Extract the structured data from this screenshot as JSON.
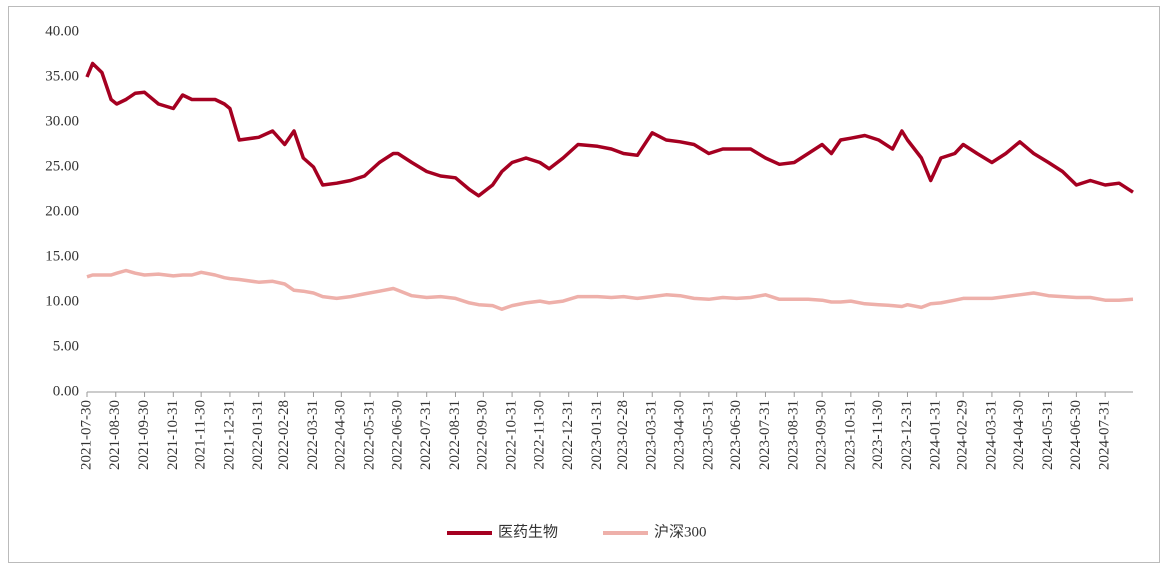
{
  "chart_data": {
    "type": "line",
    "x": [
      "2021-07-30",
      "2021-08-05",
      "2021-08-15",
      "2021-08-25",
      "2021-08-31",
      "2021-09-10",
      "2021-09-20",
      "2021-09-30",
      "2021-10-15",
      "2021-10-31",
      "2021-11-10",
      "2021-11-20",
      "2021-11-30",
      "2021-12-15",
      "2021-12-25",
      "2021-12-31",
      "2022-01-10",
      "2022-01-31",
      "2022-02-15",
      "2022-02-28",
      "2022-03-10",
      "2022-03-20",
      "2022-03-31",
      "2022-04-10",
      "2022-04-25",
      "2022-05-10",
      "2022-05-25",
      "2022-06-10",
      "2022-06-25",
      "2022-06-30",
      "2022-07-15",
      "2022-07-31",
      "2022-08-15",
      "2022-08-31",
      "2022-09-15",
      "2022-09-25",
      "2022-10-10",
      "2022-10-20",
      "2022-10-31",
      "2022-11-15",
      "2022-11-30",
      "2022-12-10",
      "2022-12-25",
      "2023-01-10",
      "2023-01-31",
      "2023-02-15",
      "2023-02-28",
      "2023-03-15",
      "2023-03-31",
      "2023-04-15",
      "2023-04-30",
      "2023-05-15",
      "2023-05-31",
      "2023-06-15",
      "2023-06-30",
      "2023-07-15",
      "2023-07-31",
      "2023-08-15",
      "2023-08-31",
      "2023-09-15",
      "2023-09-30",
      "2023-10-10",
      "2023-10-20",
      "2023-10-31",
      "2023-11-15",
      "2023-11-30",
      "2023-12-15",
      "2023-12-25",
      "2023-12-31",
      "2024-01-15",
      "2024-01-25",
      "2024-02-05",
      "2024-02-20",
      "2024-02-29",
      "2024-03-15",
      "2024-03-31",
      "2024-04-15",
      "2024-04-30",
      "2024-05-15",
      "2024-05-31",
      "2024-06-15",
      "2024-06-30",
      "2024-07-15",
      "2024-07-31",
      "2024-08-15",
      "2024-08-30"
    ],
    "series": [
      {
        "name": "医药生物",
        "color": "#a50021",
        "values": [
          35.0,
          36.5,
          35.5,
          32.5,
          32.0,
          32.5,
          33.2,
          33.3,
          32.0,
          31.5,
          33.0,
          32.5,
          32.5,
          32.5,
          32.0,
          31.5,
          28.0,
          28.3,
          29.0,
          27.5,
          29.0,
          26.0,
          25.0,
          23.0,
          23.2,
          23.5,
          24.0,
          25.5,
          26.5,
          26.5,
          25.5,
          24.5,
          24.0,
          23.8,
          22.5,
          21.8,
          23.0,
          24.5,
          25.5,
          26.0,
          25.5,
          24.8,
          26.0,
          27.5,
          27.3,
          27.0,
          26.5,
          26.3,
          28.8,
          28.0,
          27.8,
          27.5,
          26.5,
          27.0,
          27.0,
          27.0,
          26.0,
          25.3,
          25.5,
          26.5,
          27.5,
          26.5,
          28.0,
          28.2,
          28.5,
          28.0,
          27.0,
          29.0,
          28.0,
          26.0,
          23.5,
          26.0,
          26.5,
          27.5,
          26.5,
          25.5,
          26.5,
          27.8,
          26.5,
          25.5,
          24.5,
          23.0,
          23.5,
          23.0,
          23.2,
          22.2
        ]
      },
      {
        "name": "沪深300",
        "color": "#eeb0aa",
        "values": [
          12.8,
          13.0,
          13.0,
          13.0,
          13.2,
          13.5,
          13.2,
          13.0,
          13.1,
          12.9,
          13.0,
          13.0,
          13.3,
          13.0,
          12.7,
          12.6,
          12.5,
          12.2,
          12.3,
          12.0,
          11.3,
          11.2,
          11.0,
          10.6,
          10.4,
          10.6,
          10.9,
          11.2,
          11.5,
          11.3,
          10.7,
          10.5,
          10.6,
          10.4,
          9.9,
          9.7,
          9.6,
          9.2,
          9.6,
          9.9,
          10.1,
          9.9,
          10.1,
          10.6,
          10.6,
          10.5,
          10.6,
          10.4,
          10.6,
          10.8,
          10.7,
          10.4,
          10.3,
          10.5,
          10.4,
          10.5,
          10.8,
          10.3,
          10.3,
          10.3,
          10.2,
          10.0,
          10.0,
          10.1,
          9.8,
          9.7,
          9.6,
          9.5,
          9.7,
          9.4,
          9.8,
          9.9,
          10.2,
          10.4,
          10.4,
          10.4,
          10.6,
          10.8,
          11.0,
          10.7,
          10.6,
          10.5,
          10.5,
          10.2,
          10.2,
          10.3
        ]
      }
    ],
    "xlim": [
      "2021-07-30",
      "2024-08-30"
    ],
    "xticks": [
      "2021-07-30",
      "2021-08-30",
      "2021-09-30",
      "2021-10-31",
      "2021-11-30",
      "2021-12-31",
      "2022-01-31",
      "2022-02-28",
      "2022-03-31",
      "2022-04-30",
      "2022-05-31",
      "2022-06-30",
      "2022-07-31",
      "2022-08-31",
      "2022-09-30",
      "2022-10-31",
      "2022-11-30",
      "2022-12-31",
      "2023-01-31",
      "2023-02-28",
      "2023-03-31",
      "2023-04-30",
      "2023-05-31",
      "2023-06-30",
      "2023-07-31",
      "2023-08-31",
      "2023-09-30",
      "2023-10-31",
      "2023-11-30",
      "2023-12-31",
      "2024-01-31",
      "2024-02-29",
      "2024-03-31",
      "2024-04-30",
      "2024-05-31",
      "2024-06-30",
      "2024-07-31"
    ],
    "ylim": [
      0,
      40
    ],
    "yticks": [
      {
        "value": 0,
        "label": "0.00"
      },
      {
        "value": 5,
        "label": "5.00"
      },
      {
        "value": 10,
        "label": "10.00"
      },
      {
        "value": 15,
        "label": "15.00"
      },
      {
        "value": 20,
        "label": "20.00"
      },
      {
        "value": 25,
        "label": "25.00"
      },
      {
        "value": 30,
        "label": "30.00"
      },
      {
        "value": 35,
        "label": "35.00"
      },
      {
        "value": 40,
        "label": "40.00"
      }
    ],
    "grid": false,
    "legend": "bottom"
  }
}
